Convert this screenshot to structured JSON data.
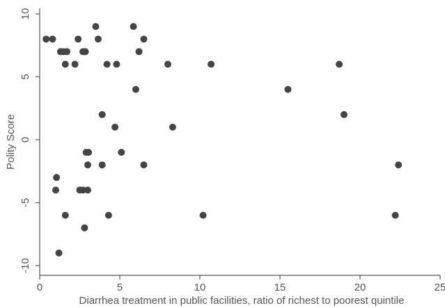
{
  "chart_data": {
    "type": "scatter",
    "title": "",
    "xlabel": "Diarrhea treatment in public facilities, ratio of richest to poorest quintile",
    "ylabel": "Polity Score",
    "xlim": [
      0,
      25
    ],
    "ylim": [
      -10,
      10
    ],
    "xticks": [
      "0",
      "5",
      "10",
      "15",
      "20",
      "25"
    ],
    "yticks": [
      "10",
      "5",
      "0",
      "-5",
      "-10"
    ],
    "grid": false,
    "marker_color": "#454545",
    "points": [
      {
        "x": 0.4,
        "y": 8
      },
      {
        "x": 0.8,
        "y": 8
      },
      {
        "x": 1.3,
        "y": 7
      },
      {
        "x": 1.5,
        "y": 7
      },
      {
        "x": 1.7,
        "y": 7
      },
      {
        "x": 1.6,
        "y": 6
      },
      {
        "x": 2.2,
        "y": 6
      },
      {
        "x": 2.4,
        "y": 8
      },
      {
        "x": 2.7,
        "y": 7
      },
      {
        "x": 2.85,
        "y": 7
      },
      {
        "x": 3.5,
        "y": 9
      },
      {
        "x": 3.65,
        "y": 8
      },
      {
        "x": 4.2,
        "y": 6
      },
      {
        "x": 4.8,
        "y": 6
      },
      {
        "x": 5.85,
        "y": 9
      },
      {
        "x": 6.5,
        "y": 8
      },
      {
        "x": 6.2,
        "y": 7
      },
      {
        "x": 6.0,
        "y": 4
      },
      {
        "x": 8.0,
        "y": 6
      },
      {
        "x": 10.7,
        "y": 6
      },
      {
        "x": 15.5,
        "y": 4
      },
      {
        "x": 18.7,
        "y": 6
      },
      {
        "x": 19.0,
        "y": 2
      },
      {
        "x": 3.9,
        "y": 2
      },
      {
        "x": 4.7,
        "y": 1
      },
      {
        "x": 8.3,
        "y": 1
      },
      {
        "x": 2.9,
        "y": -1
      },
      {
        "x": 3.05,
        "y": -1
      },
      {
        "x": 5.1,
        "y": -1
      },
      {
        "x": 3.0,
        "y": -2
      },
      {
        "x": 3.9,
        "y": -2
      },
      {
        "x": 6.5,
        "y": -2
      },
      {
        "x": 22.4,
        "y": -2
      },
      {
        "x": 1.05,
        "y": -3
      },
      {
        "x": 1.0,
        "y": -4
      },
      {
        "x": 2.5,
        "y": -4
      },
      {
        "x": 2.7,
        "y": -4
      },
      {
        "x": 3.0,
        "y": -4
      },
      {
        "x": 1.6,
        "y": -6
      },
      {
        "x": 4.3,
        "y": -6
      },
      {
        "x": 10.2,
        "y": -6
      },
      {
        "x": 22.2,
        "y": -6
      },
      {
        "x": 2.8,
        "y": -7
      },
      {
        "x": 1.2,
        "y": -9
      }
    ]
  }
}
